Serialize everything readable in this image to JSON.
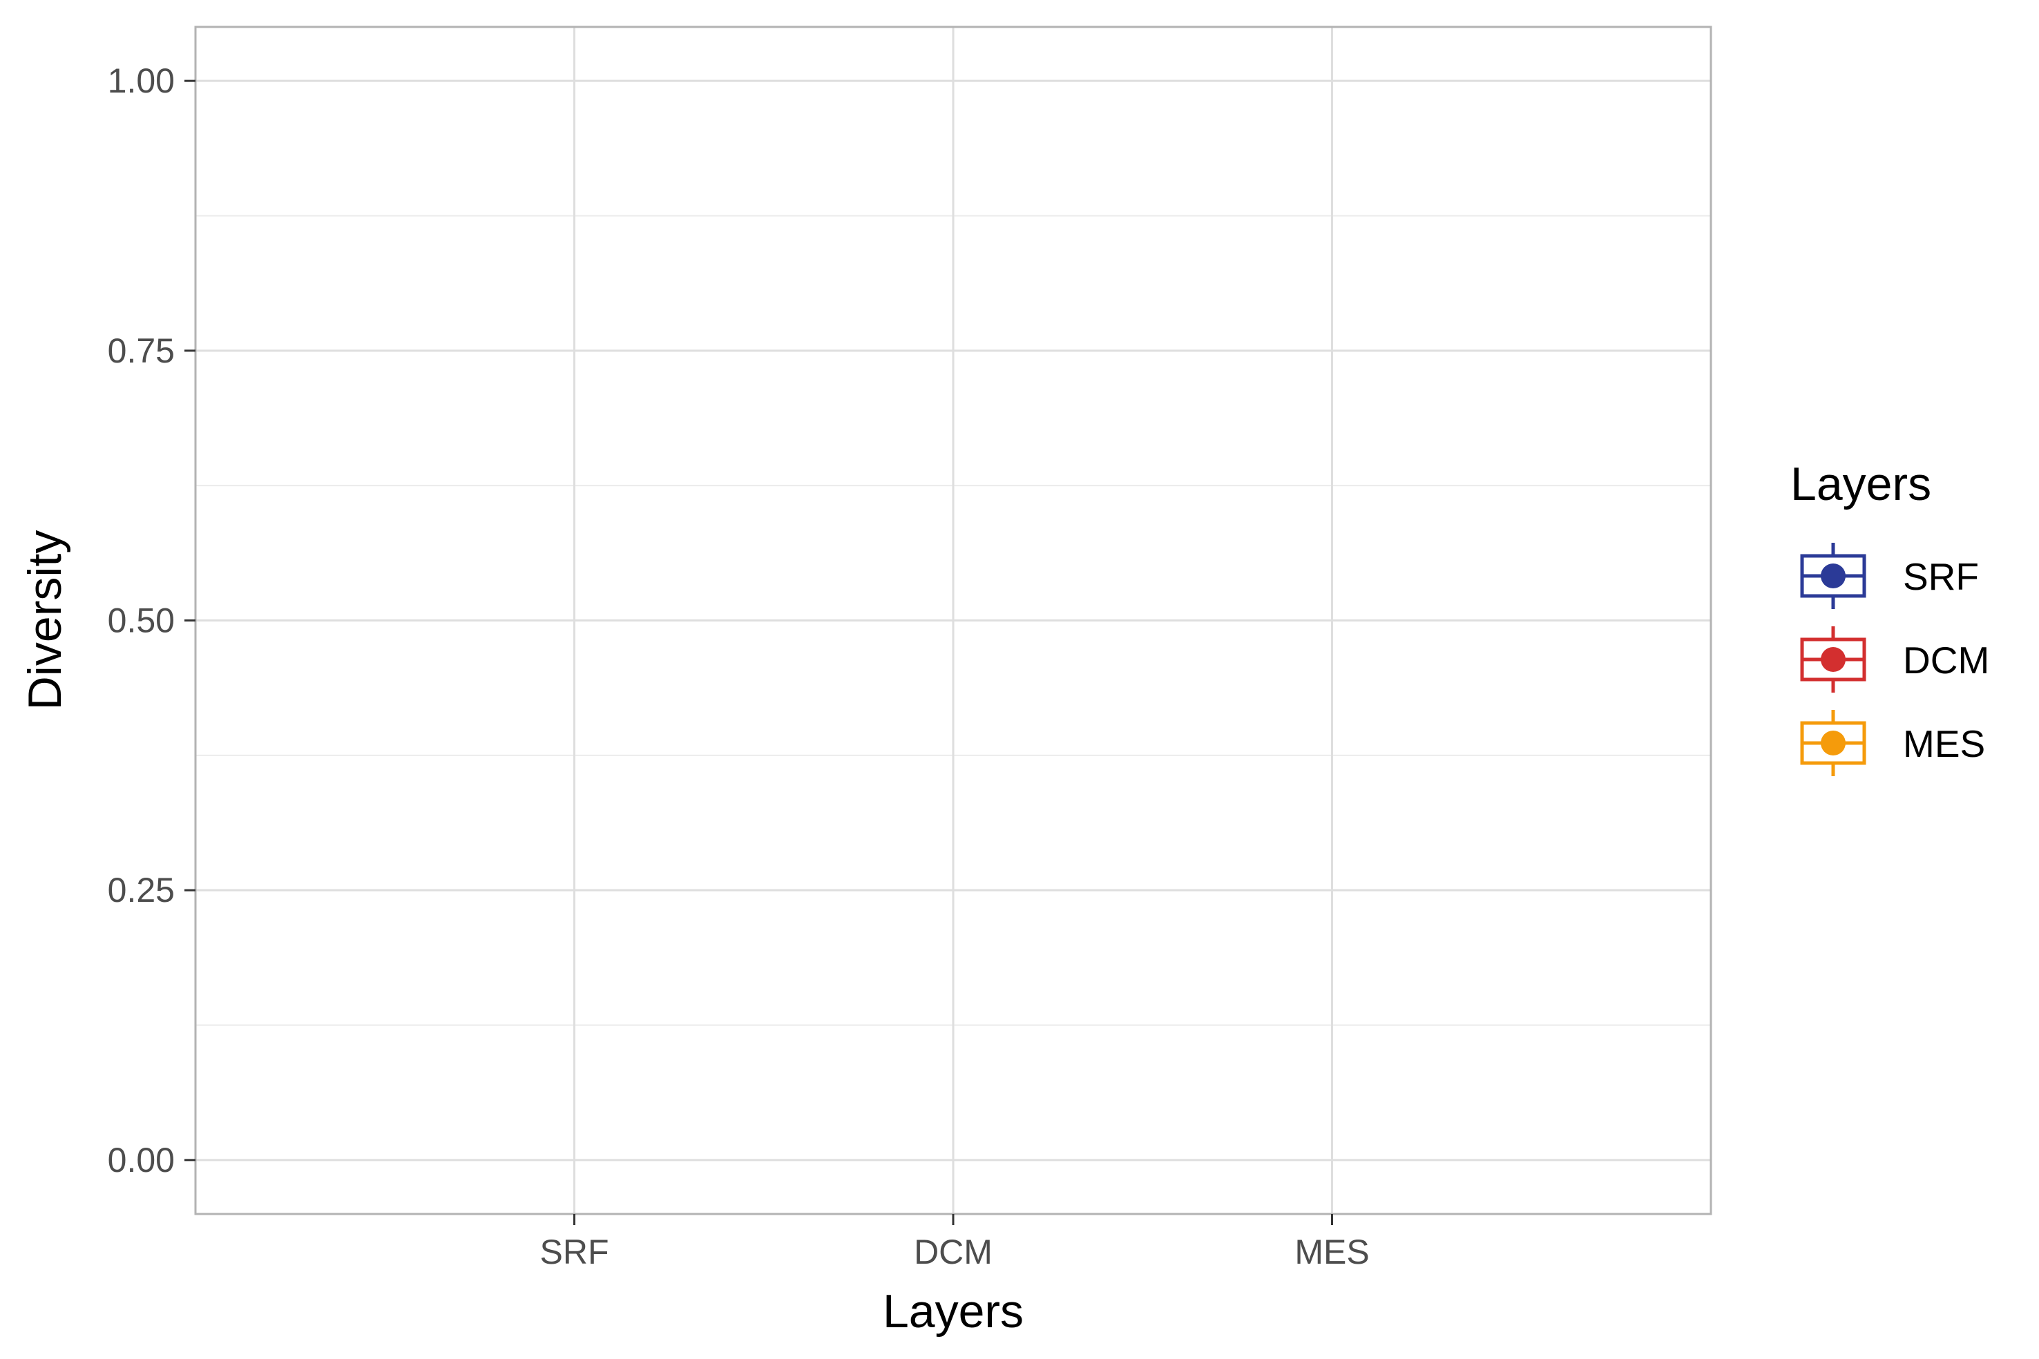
{
  "chart_data": {
    "type": "box",
    "categories": [
      "SRF",
      "DCM",
      "MES"
    ],
    "series": [
      {
        "name": "SRF",
        "color": "#2b3a97",
        "values": []
      },
      {
        "name": "DCM",
        "color": "#d32f2f",
        "values": []
      },
      {
        "name": "MES",
        "color": "#f59b0b",
        "values": []
      }
    ],
    "title": "",
    "xlabel": "Layers",
    "ylabel": "Diversity",
    "ylim": [
      -0.05,
      1.05
    ],
    "yticks": [
      "0.00",
      "0.25",
      "0.50",
      "0.75",
      "1.00"
    ],
    "ytick_values": [
      0,
      0.25,
      0.5,
      0.75,
      1.0
    ],
    "grid": true,
    "legend": {
      "title": "Layers",
      "position": "right",
      "entries": [
        "SRF",
        "DCM",
        "MES"
      ]
    }
  }
}
